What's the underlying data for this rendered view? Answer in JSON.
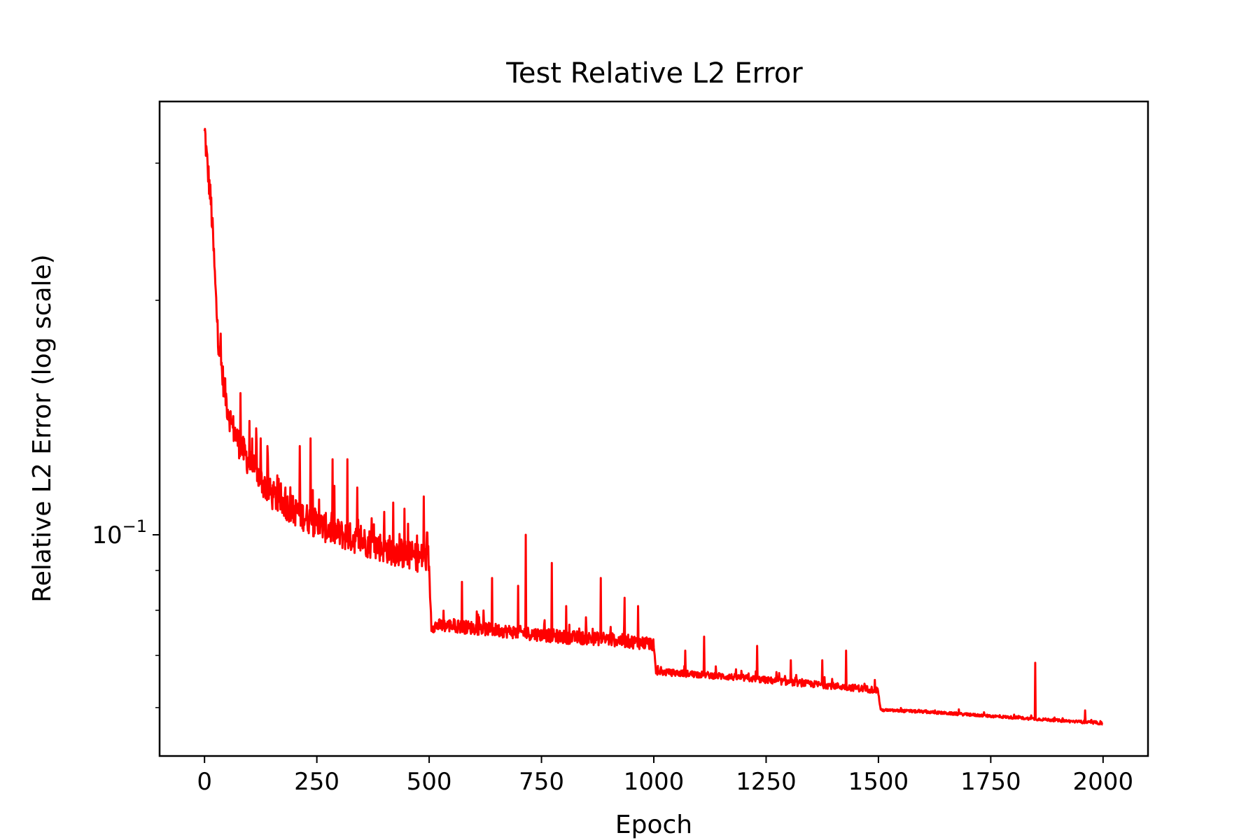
{
  "chart_data": {
    "type": "line",
    "title": "Test Relative L2 Error",
    "xlabel": "Epoch",
    "ylabel": "Relative L2 Error (log scale)",
    "yscale": "log",
    "xlim": [
      -100,
      2100
    ],
    "ylim": [
      0.052,
      0.36
    ],
    "grid": false,
    "x_ticks": [
      0,
      250,
      500,
      750,
      1000,
      1250,
      1500,
      1750,
      2000
    ],
    "x_tick_labels": [
      "0",
      "250",
      "500",
      "750",
      "1000",
      "1250",
      "1500",
      "1750",
      "2000"
    ],
    "y_major_ticks": [
      0.1
    ],
    "y_tick_label": {
      "base": "10",
      "exponent": "−1"
    },
    "y_minor_ticks": [
      0.06,
      0.07,
      0.08,
      0.09,
      0.2,
      0.3
    ],
    "series": [
      {
        "color": "#ff0000",
        "line_width": 3,
        "epochs": [
          0,
          1999
        ],
        "trend_points": [
          [
            0,
            0.33
          ],
          [
            5,
            0.3
          ],
          [
            10,
            0.28
          ],
          [
            15,
            0.26
          ],
          [
            20,
            0.23
          ],
          [
            25,
            0.2
          ],
          [
            30,
            0.178
          ],
          [
            40,
            0.158
          ],
          [
            50,
            0.145
          ],
          [
            60,
            0.137
          ],
          [
            75,
            0.13
          ],
          [
            100,
            0.122
          ],
          [
            125,
            0.116
          ],
          [
            150,
            0.111
          ],
          [
            200,
            0.106
          ],
          [
            250,
            0.102
          ],
          [
            300,
            0.099
          ],
          [
            350,
            0.097
          ],
          [
            400,
            0.095
          ],
          [
            450,
            0.093
          ],
          [
            499,
            0.092
          ],
          [
            505,
            0.076
          ],
          [
            550,
            0.076
          ],
          [
            600,
            0.0755
          ],
          [
            700,
            0.0745
          ],
          [
            800,
            0.0735
          ],
          [
            900,
            0.073
          ],
          [
            999,
            0.072
          ],
          [
            1005,
            0.0665
          ],
          [
            1100,
            0.066
          ],
          [
            1200,
            0.0653
          ],
          [
            1300,
            0.0645
          ],
          [
            1400,
            0.0638
          ],
          [
            1499,
            0.063
          ],
          [
            1505,
            0.0595
          ],
          [
            1600,
            0.0592
          ],
          [
            1700,
            0.0587
          ],
          [
            1800,
            0.0582
          ],
          [
            1900,
            0.0577
          ],
          [
            1999,
            0.0572
          ]
        ],
        "segments": [
          {
            "start": 0,
            "end": 499,
            "noise": 0.045
          },
          {
            "start": 500,
            "end": 999,
            "noise": 0.02
          },
          {
            "start": 1000,
            "end": 1499,
            "noise": 0.01
          },
          {
            "start": 1500,
            "end": 1999,
            "noise": 0.004
          }
        ],
        "spikes": [
          [
            80,
            0.152
          ],
          [
            100,
            0.14
          ],
          [
            115,
            0.137
          ],
          [
            125,
            0.133
          ],
          [
            140,
            0.13
          ],
          [
            165,
            0.118
          ],
          [
            180,
            0.115
          ],
          [
            195,
            0.112
          ],
          [
            212,
            0.13
          ],
          [
            236,
            0.133
          ],
          [
            255,
            0.111
          ],
          [
            285,
            0.125
          ],
          [
            318,
            0.125
          ],
          [
            340,
            0.115
          ],
          [
            372,
            0.105
          ],
          [
            400,
            0.107
          ],
          [
            420,
            0.11
          ],
          [
            445,
            0.108
          ],
          [
            488,
            0.112
          ],
          [
            573,
            0.087
          ],
          [
            640,
            0.088
          ],
          [
            698,
            0.086
          ],
          [
            715,
            0.1
          ],
          [
            773,
            0.092
          ],
          [
            805,
            0.081
          ],
          [
            882,
            0.088
          ],
          [
            935,
            0.083
          ],
          [
            965,
            0.081
          ],
          [
            1070,
            0.071
          ],
          [
            1112,
            0.074
          ],
          [
            1230,
            0.072
          ],
          [
            1305,
            0.069
          ],
          [
            1375,
            0.069
          ],
          [
            1428,
            0.071
          ],
          [
            1849,
            0.0685
          ],
          [
            1960,
            0.0595
          ]
        ]
      }
    ]
  }
}
